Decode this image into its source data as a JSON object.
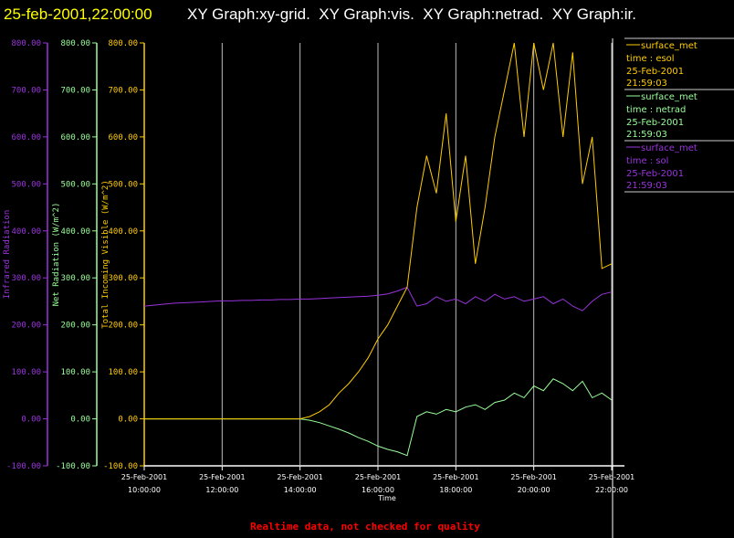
{
  "title": {
    "timestamp": "25-feb-2001,22:00:00",
    "graphs": "XY Graph:xy-grid.  XY Graph:vis.  XY Graph:netrad.  XY Graph:ir."
  },
  "footer": "Realtime data, not checked for quality",
  "colors": {
    "esol": "#ffcc00",
    "netrad": "#99ff99",
    "sol": "#9933dd",
    "footer": "#ff0000"
  },
  "chart_data": {
    "type": "line",
    "xlabel": "Time",
    "x_ticks": [
      {
        "date": "25-Feb-2001",
        "time": "10:00:00"
      },
      {
        "date": "25-Feb-2001",
        "time": "12:00:00"
      },
      {
        "date": "25-Feb-2001",
        "time": "14:00:00"
      },
      {
        "date": "25-Feb-2001",
        "time": "16:00:00"
      },
      {
        "date": "25-Feb-2001",
        "time": "18:00:00"
      },
      {
        "date": "25-Feb-2001",
        "time": "20:00:00"
      },
      {
        "date": "25-Feb-2001",
        "time": "22:00:00"
      }
    ],
    "x_range_hours": [
      10,
      22.33
    ],
    "x_step_hours": 0.25,
    "x_start_hour": 10,
    "y_ticks": [
      "800.00",
      "700.00",
      "600.00",
      "500.00",
      "400.00",
      "300.00",
      "200.00",
      "100.00",
      "0.00",
      "-100.00"
    ],
    "ylim": [
      -100,
      800
    ],
    "axes": [
      {
        "label": "Infrared Radiation",
        "color": "#9933dd"
      },
      {
        "label": "Net Radiation (W/m^2)",
        "color": "#99ff99"
      },
      {
        "label": "Total Incoming Visible (W/m^2)",
        "color": "#ffcc00"
      }
    ],
    "grid": "vertical",
    "legend_placement": "right",
    "series": [
      {
        "name": "surface_met",
        "var": "time : esol",
        "date": "25-Feb-2001",
        "time": "21:59:03",
        "color": "#ffcc00",
        "values": [
          0,
          0,
          0,
          0,
          0,
          0,
          0,
          0,
          0,
          0,
          0,
          0,
          0,
          0,
          0,
          0,
          0,
          5,
          15,
          30,
          55,
          75,
          100,
          130,
          170,
          200,
          240,
          280,
          450,
          560,
          480,
          650,
          420,
          560,
          330,
          450,
          600,
          700,
          820,
          600,
          850,
          700,
          820,
          600,
          780,
          500,
          600,
          320,
          330
        ]
      },
      {
        "name": "surface_met",
        "var": "time : netrad",
        "date": "25-Feb-2001",
        "time": "21:59:03",
        "color": "#99ff99",
        "values": [
          0,
          0,
          0,
          0,
          0,
          0,
          0,
          0,
          0,
          0,
          0,
          0,
          0,
          0,
          0,
          0,
          0,
          -3,
          -8,
          -15,
          -22,
          -30,
          -40,
          -48,
          -58,
          -65,
          -70,
          -78,
          5,
          15,
          10,
          20,
          15,
          25,
          30,
          20,
          35,
          40,
          55,
          45,
          70,
          60,
          85,
          75,
          60,
          80,
          45,
          55,
          40
        ]
      },
      {
        "name": "surface_met",
        "var": "time : sol",
        "date": "25-Feb-2001",
        "time": "21:59:03",
        "color": "#9933dd",
        "values": [
          240,
          242,
          244,
          246,
          247,
          248,
          249,
          250,
          251,
          251,
          252,
          252,
          253,
          253,
          254,
          254,
          255,
          255,
          256,
          257,
          258,
          259,
          260,
          261,
          263,
          266,
          272,
          280,
          240,
          245,
          260,
          250,
          255,
          245,
          260,
          250,
          265,
          255,
          260,
          250,
          255,
          260,
          245,
          255,
          240,
          230,
          250,
          265,
          270
        ]
      }
    ]
  }
}
